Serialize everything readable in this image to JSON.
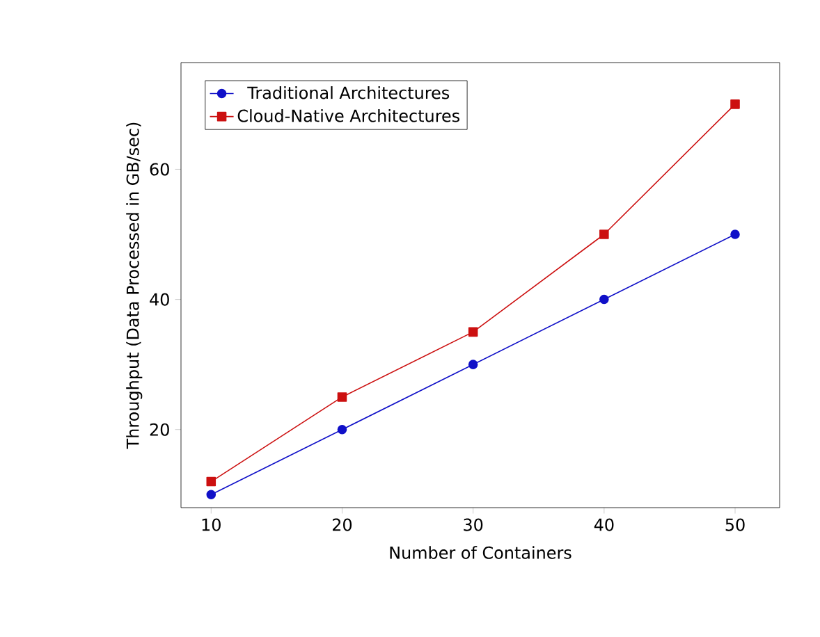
{
  "chart_data": {
    "type": "line",
    "xlabel": "Number of Containers",
    "ylabel": "Throughput (Data Processed in GB/sec)",
    "x": [
      10,
      20,
      30,
      40,
      50
    ],
    "series": [
      {
        "name": "Traditional Architectures",
        "color": "#1010c8",
        "values": [
          10,
          20,
          30,
          40,
          50
        ],
        "marker": "circle"
      },
      {
        "name": "Cloud-Native Architectures",
        "color": "#cc1010",
        "values": [
          12,
          25,
          35,
          50,
          70
        ],
        "marker": "square"
      }
    ],
    "xlim": [
      7.7,
      53.4
    ],
    "ylim": [
      8,
      76.4
    ],
    "xticks": [
      10,
      20,
      30,
      40,
      50
    ],
    "yticks": [
      20,
      40,
      60
    ],
    "grid": false,
    "legend": "top left"
  }
}
